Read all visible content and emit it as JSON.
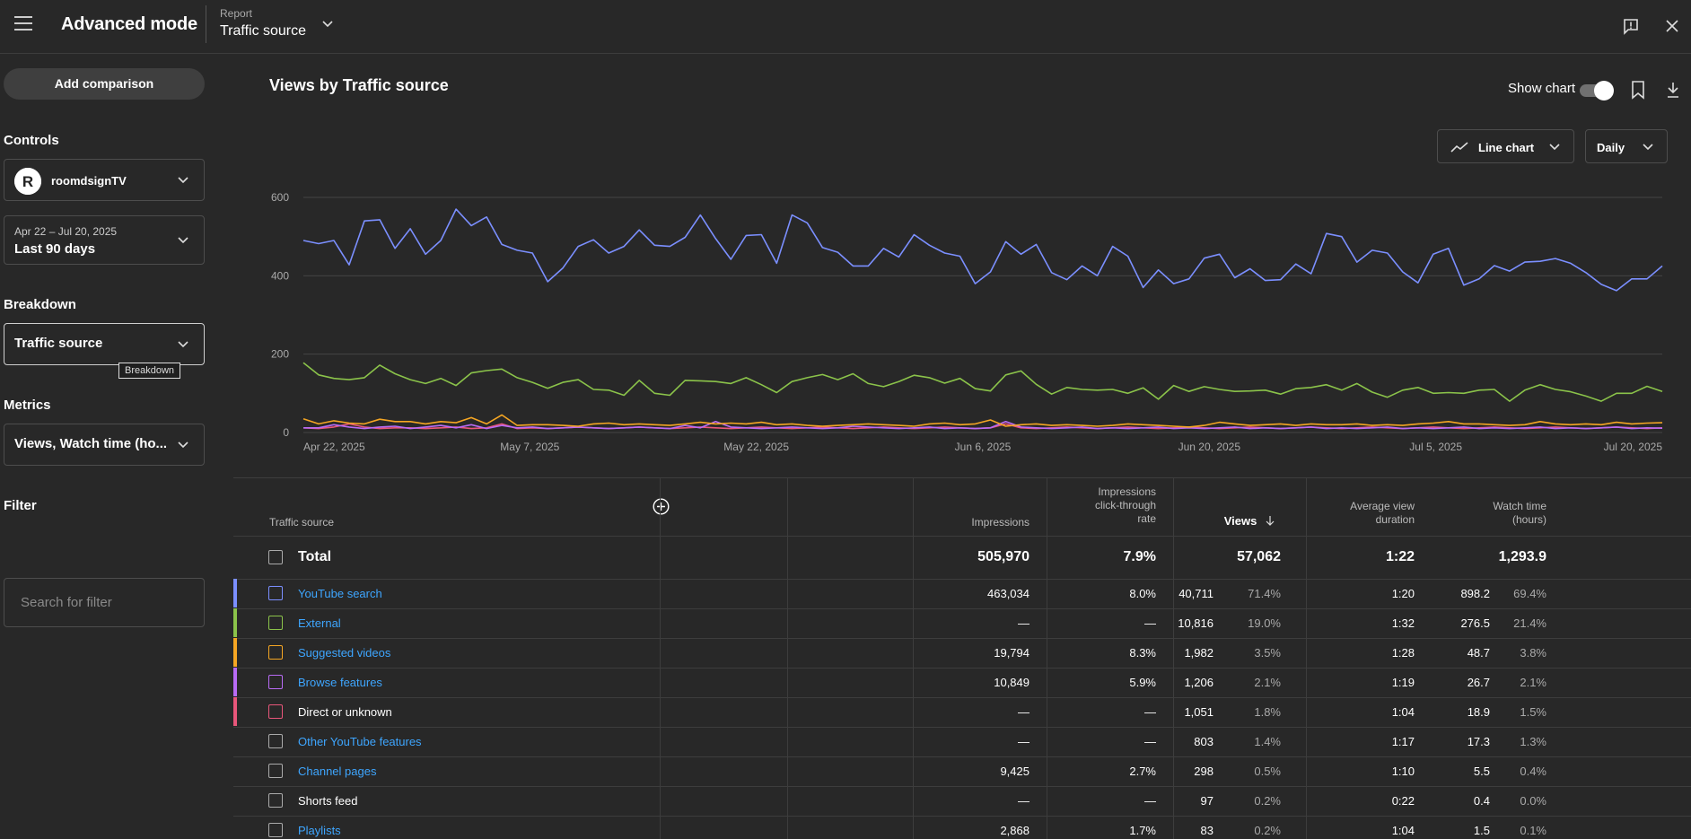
{
  "header": {
    "app_title": "Advanced mode",
    "report_label": "Report",
    "report_value": "Traffic source"
  },
  "sidebar": {
    "add_comparison": "Add comparison",
    "controls_label": "Controls",
    "channel_name": "roomdsignTV",
    "date_range_small": "Apr 22 – Jul 20, 2025",
    "date_range_main": "Last 90 days",
    "breakdown_label": "Breakdown",
    "breakdown_value": "Traffic source",
    "breakdown_tooltip": "Breakdown",
    "metrics_label": "Metrics",
    "metrics_value": "Views, Watch time (ho...",
    "filter_label": "Filter",
    "filter_placeholder": "Search for filter"
  },
  "chart_panel": {
    "title": "Views by Traffic source",
    "show_chart_label": "Show chart",
    "show_chart_on": true,
    "chart_type_label": "Line chart",
    "interval_label": "Daily"
  },
  "chart_data": {
    "type": "line",
    "title": "Views by Traffic source",
    "x_start": "Apr 22, 2025",
    "x_end": "Jul 20, 2025",
    "x_tick_labels": [
      "Apr 22, 2025",
      "May 7, 2025",
      "May 22, 2025",
      "Jun 6, 2025",
      "Jun 20, 2025",
      "Jul 5, 2025",
      "Jul 20, 2025"
    ],
    "y_ticks": [
      0,
      200,
      400,
      600
    ],
    "ylim": [
      0,
      600
    ],
    "grid": true,
    "series": [
      {
        "name": "YouTube search",
        "color": "#7b8fff",
        "values": [
          490,
          482,
          490,
          428,
          540,
          543,
          470,
          520,
          455,
          490,
          570,
          528,
          550,
          480,
          465,
          458,
          385,
          420,
          475,
          492,
          458,
          475,
          517,
          478,
          475,
          498,
          555,
          495,
          442,
          503,
          505,
          432,
          555,
          535,
          472,
          460,
          425,
          425,
          470,
          448,
          505,
          478,
          458,
          450,
          380,
          410,
          487,
          455,
          480,
          408,
          390,
          425,
          400,
          475,
          450,
          370,
          415,
          380,
          392,
          445,
          455,
          395,
          418,
          388,
          390,
          430,
          405,
          508,
          500,
          435,
          465,
          458,
          410,
          382,
          455,
          470,
          376,
          392,
          426,
          412,
          435,
          437,
          444,
          432,
          408,
          378,
          362,
          392,
          392,
          425
        ]
      },
      {
        "name": "External",
        "color": "#8bc34a",
        "values": [
          178,
          147,
          138,
          135,
          140,
          172,
          150,
          135,
          125,
          138,
          120,
          152,
          158,
          162,
          140,
          128,
          113,
          128,
          135,
          110,
          108,
          95,
          133,
          100,
          95,
          133,
          132,
          130,
          125,
          140,
          122,
          102,
          130,
          140,
          148,
          135,
          150,
          125,
          117,
          130,
          146,
          140,
          126,
          138,
          112,
          106,
          147,
          157,
          123,
          98,
          115,
          110,
          108,
          110,
          100,
          114,
          85,
          120,
          105,
          117,
          110,
          105,
          106,
          108,
          98,
          112,
          115,
          122,
          108,
          125,
          103,
          90,
          108,
          115,
          100,
          102,
          100,
          108,
          110,
          80,
          108,
          122,
          110,
          104,
          93,
          80,
          100,
          100,
          118,
          105
        ]
      },
      {
        "name": "Suggested videos",
        "color": "#f5a623",
        "values": [
          35,
          22,
          30,
          24,
          22,
          34,
          28,
          28,
          22,
          28,
          25,
          38,
          22,
          45,
          18,
          20,
          20,
          18,
          16,
          22,
          24,
          20,
          22,
          20,
          18,
          22,
          26,
          22,
          24,
          22,
          26,
          20,
          22,
          18,
          16,
          18,
          20,
          22,
          20,
          18,
          16,
          22,
          24,
          20,
          22,
          32,
          16,
          20,
          22,
          18,
          20,
          18,
          16,
          18,
          22,
          20,
          18,
          16,
          14,
          18,
          26,
          22,
          18,
          20,
          22,
          18,
          22,
          20,
          20,
          22,
          18,
          20,
          18,
          22,
          24,
          28,
          22,
          22,
          20,
          18,
          20,
          28,
          22,
          20,
          22,
          20,
          26,
          22,
          24,
          25
        ]
      },
      {
        "name": "Browse features",
        "color": "#b86bf5",
        "values": [
          12,
          12,
          20,
          14,
          10,
          14,
          16,
          10,
          14,
          18,
          12,
          20,
          10,
          18,
          12,
          14,
          10,
          12,
          14,
          12,
          10,
          12,
          14,
          12,
          10,
          18,
          12,
          28,
          14,
          12,
          10,
          12,
          14,
          12,
          10,
          12,
          16,
          14,
          12,
          10,
          12,
          14,
          10,
          12,
          10,
          12,
          28,
          14,
          12,
          10,
          12,
          14,
          10,
          12,
          10,
          12,
          14,
          10,
          12,
          10,
          12,
          14,
          10,
          12,
          10,
          12,
          14,
          10,
          12,
          10,
          12,
          14,
          10,
          12,
          10,
          12,
          14,
          10,
          12,
          10,
          12,
          14,
          10,
          12,
          10,
          12,
          14,
          10,
          12,
          11
        ]
      },
      {
        "name": "Direct or unknown",
        "color": "#e8567a",
        "values": [
          12,
          10,
          14,
          22,
          14,
          10,
          12,
          12,
          10,
          12,
          14,
          10,
          12,
          22,
          10,
          12,
          10,
          12,
          14,
          12,
          10,
          12,
          14,
          12,
          10,
          12,
          14,
          12,
          10,
          12,
          14,
          12,
          10,
          12,
          14,
          12,
          10,
          12,
          14,
          12,
          10,
          12,
          14,
          12,
          10,
          12,
          22,
          12,
          10,
          12,
          14,
          12,
          10,
          12,
          14,
          12,
          10,
          12,
          14,
          12,
          10,
          12,
          14,
          12,
          10,
          12,
          14,
          12,
          10,
          12,
          14,
          12,
          10,
          12,
          14,
          12,
          10,
          12,
          14,
          12,
          10,
          12,
          14,
          12,
          10,
          12,
          14,
          12,
          10,
          12
        ]
      }
    ]
  },
  "table": {
    "headers": {
      "source": "Traffic source",
      "impressions": "Impressions",
      "ctr": [
        "Impressions",
        "click-through",
        "rate"
      ],
      "views": "Views",
      "avd": [
        "Average view",
        "duration"
      ],
      "watch": [
        "Watch time",
        "(hours)"
      ]
    },
    "total": {
      "label": "Total",
      "impressions": "505,970",
      "ctr": "7.9%",
      "views": "57,062",
      "avd": "1:22",
      "watch": "1,293.9"
    },
    "rows": [
      {
        "name": "YouTube search",
        "link": true,
        "color": "#7b8fff",
        "impressions": "463,034",
        "ctr": "8.0%",
        "views": "40,711",
        "views_pct": "71.4%",
        "avd": "1:20",
        "watch": "898.2",
        "watch_pct": "69.4%"
      },
      {
        "name": "External",
        "link": true,
        "color": "#8bc34a",
        "impressions": "—",
        "ctr": "—",
        "views": "10,816",
        "views_pct": "19.0%",
        "avd": "1:32",
        "watch": "276.5",
        "watch_pct": "21.4%"
      },
      {
        "name": "Suggested videos",
        "link": true,
        "color": "#f5a623",
        "impressions": "19,794",
        "ctr": "8.3%",
        "views": "1,982",
        "views_pct": "3.5%",
        "avd": "1:28",
        "watch": "48.7",
        "watch_pct": "3.8%"
      },
      {
        "name": "Browse features",
        "link": true,
        "color": "#b86bf5",
        "impressions": "10,849",
        "ctr": "5.9%",
        "views": "1,206",
        "views_pct": "2.1%",
        "avd": "1:19",
        "watch": "26.7",
        "watch_pct": "2.1%"
      },
      {
        "name": "Direct or unknown",
        "link": false,
        "color": "#e8567a",
        "impressions": "—",
        "ctr": "—",
        "views": "1,051",
        "views_pct": "1.8%",
        "avd": "1:04",
        "watch": "18.9",
        "watch_pct": "1.5%"
      },
      {
        "name": "Other YouTube features",
        "link": true,
        "color": "",
        "impressions": "—",
        "ctr": "—",
        "views": "803",
        "views_pct": "1.4%",
        "avd": "1:17",
        "watch": "17.3",
        "watch_pct": "1.3%"
      },
      {
        "name": "Channel pages",
        "link": true,
        "color": "",
        "impressions": "9,425",
        "ctr": "2.7%",
        "views": "298",
        "views_pct": "0.5%",
        "avd": "1:10",
        "watch": "5.5",
        "watch_pct": "0.4%"
      },
      {
        "name": "Shorts feed",
        "link": false,
        "color": "",
        "impressions": "—",
        "ctr": "—",
        "views": "97",
        "views_pct": "0.2%",
        "avd": "0:22",
        "watch": "0.4",
        "watch_pct": "0.0%"
      },
      {
        "name": "Playlists",
        "link": true,
        "color": "",
        "impressions": "2,868",
        "ctr": "1.7%",
        "views": "83",
        "views_pct": "0.2%",
        "avd": "1:04",
        "watch": "1.5",
        "watch_pct": "0.1%"
      }
    ]
  }
}
